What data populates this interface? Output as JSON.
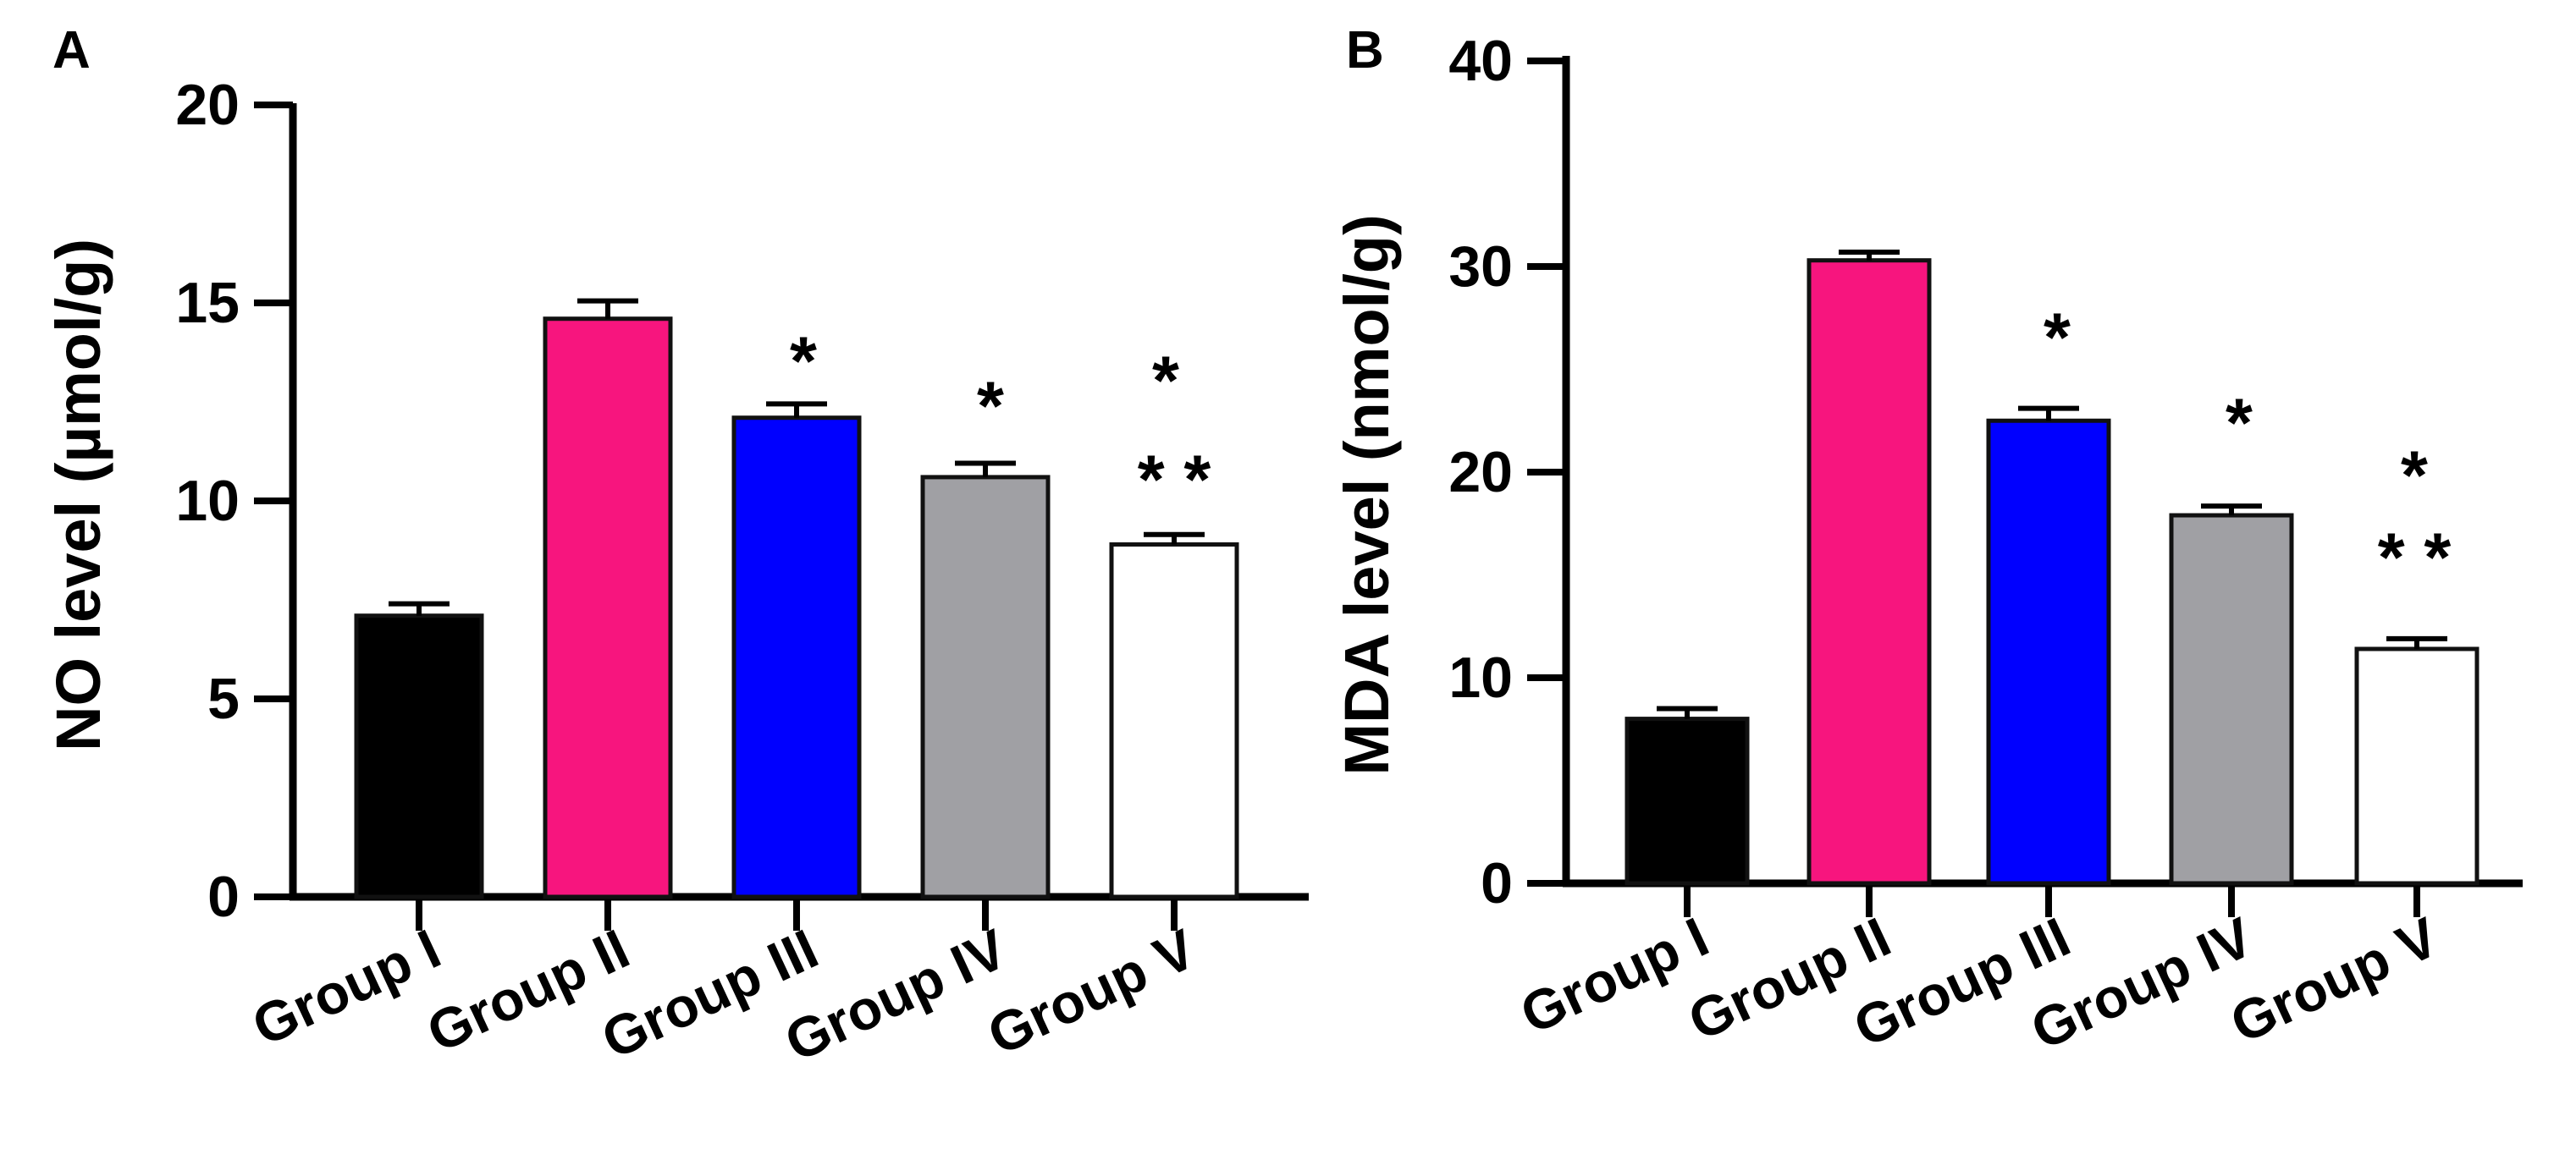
{
  "colors": {
    "axis": "#000000",
    "bar_stroke": "#111111",
    "group_colors": [
      "#000000",
      "#f7157e",
      "#0000ff",
      "#a0a0a4",
      "#ffffff"
    ]
  },
  "chart_data": [
    {
      "type": "bar",
      "panel_label": "A",
      "title": "",
      "xlabel": "",
      "ylabel": "NO level (µmol/g)",
      "ylim": [
        0,
        20
      ],
      "yticks": [
        0,
        5,
        10,
        15,
        20
      ],
      "ytick_labels": [
        "0",
        "5",
        "10",
        "15",
        "20"
      ],
      "categories": [
        "Group I",
        "Group II",
        "Group III",
        "Group IV",
        "Group V"
      ],
      "values": [
        7.1,
        14.6,
        12.1,
        10.6,
        8.9
      ],
      "errors": [
        0.3,
        0.45,
        0.35,
        0.35,
        0.25
      ],
      "annotations": [
        [],
        [],
        [
          "*"
        ],
        [
          "*"
        ],
        [
          "*",
          "* *"
        ]
      ]
    },
    {
      "type": "bar",
      "panel_label": "B",
      "title": "",
      "xlabel": "",
      "ylabel": "MDA level (nmol/g)",
      "ylim": [
        0,
        40
      ],
      "yticks": [
        0,
        10,
        20,
        30,
        40
      ],
      "ytick_labels": [
        "0",
        "10",
        "20",
        "30",
        "40"
      ],
      "categories": [
        "Group I",
        "Group II",
        "Group III",
        "Group IV",
        "Group V"
      ],
      "values": [
        8.0,
        30.3,
        22.5,
        17.9,
        11.4
      ],
      "errors": [
        0.5,
        0.4,
        0.6,
        0.45,
        0.5
      ],
      "annotations": [
        [],
        [],
        [
          "*"
        ],
        [
          "*"
        ],
        [
          "*",
          "* *"
        ]
      ]
    }
  ]
}
